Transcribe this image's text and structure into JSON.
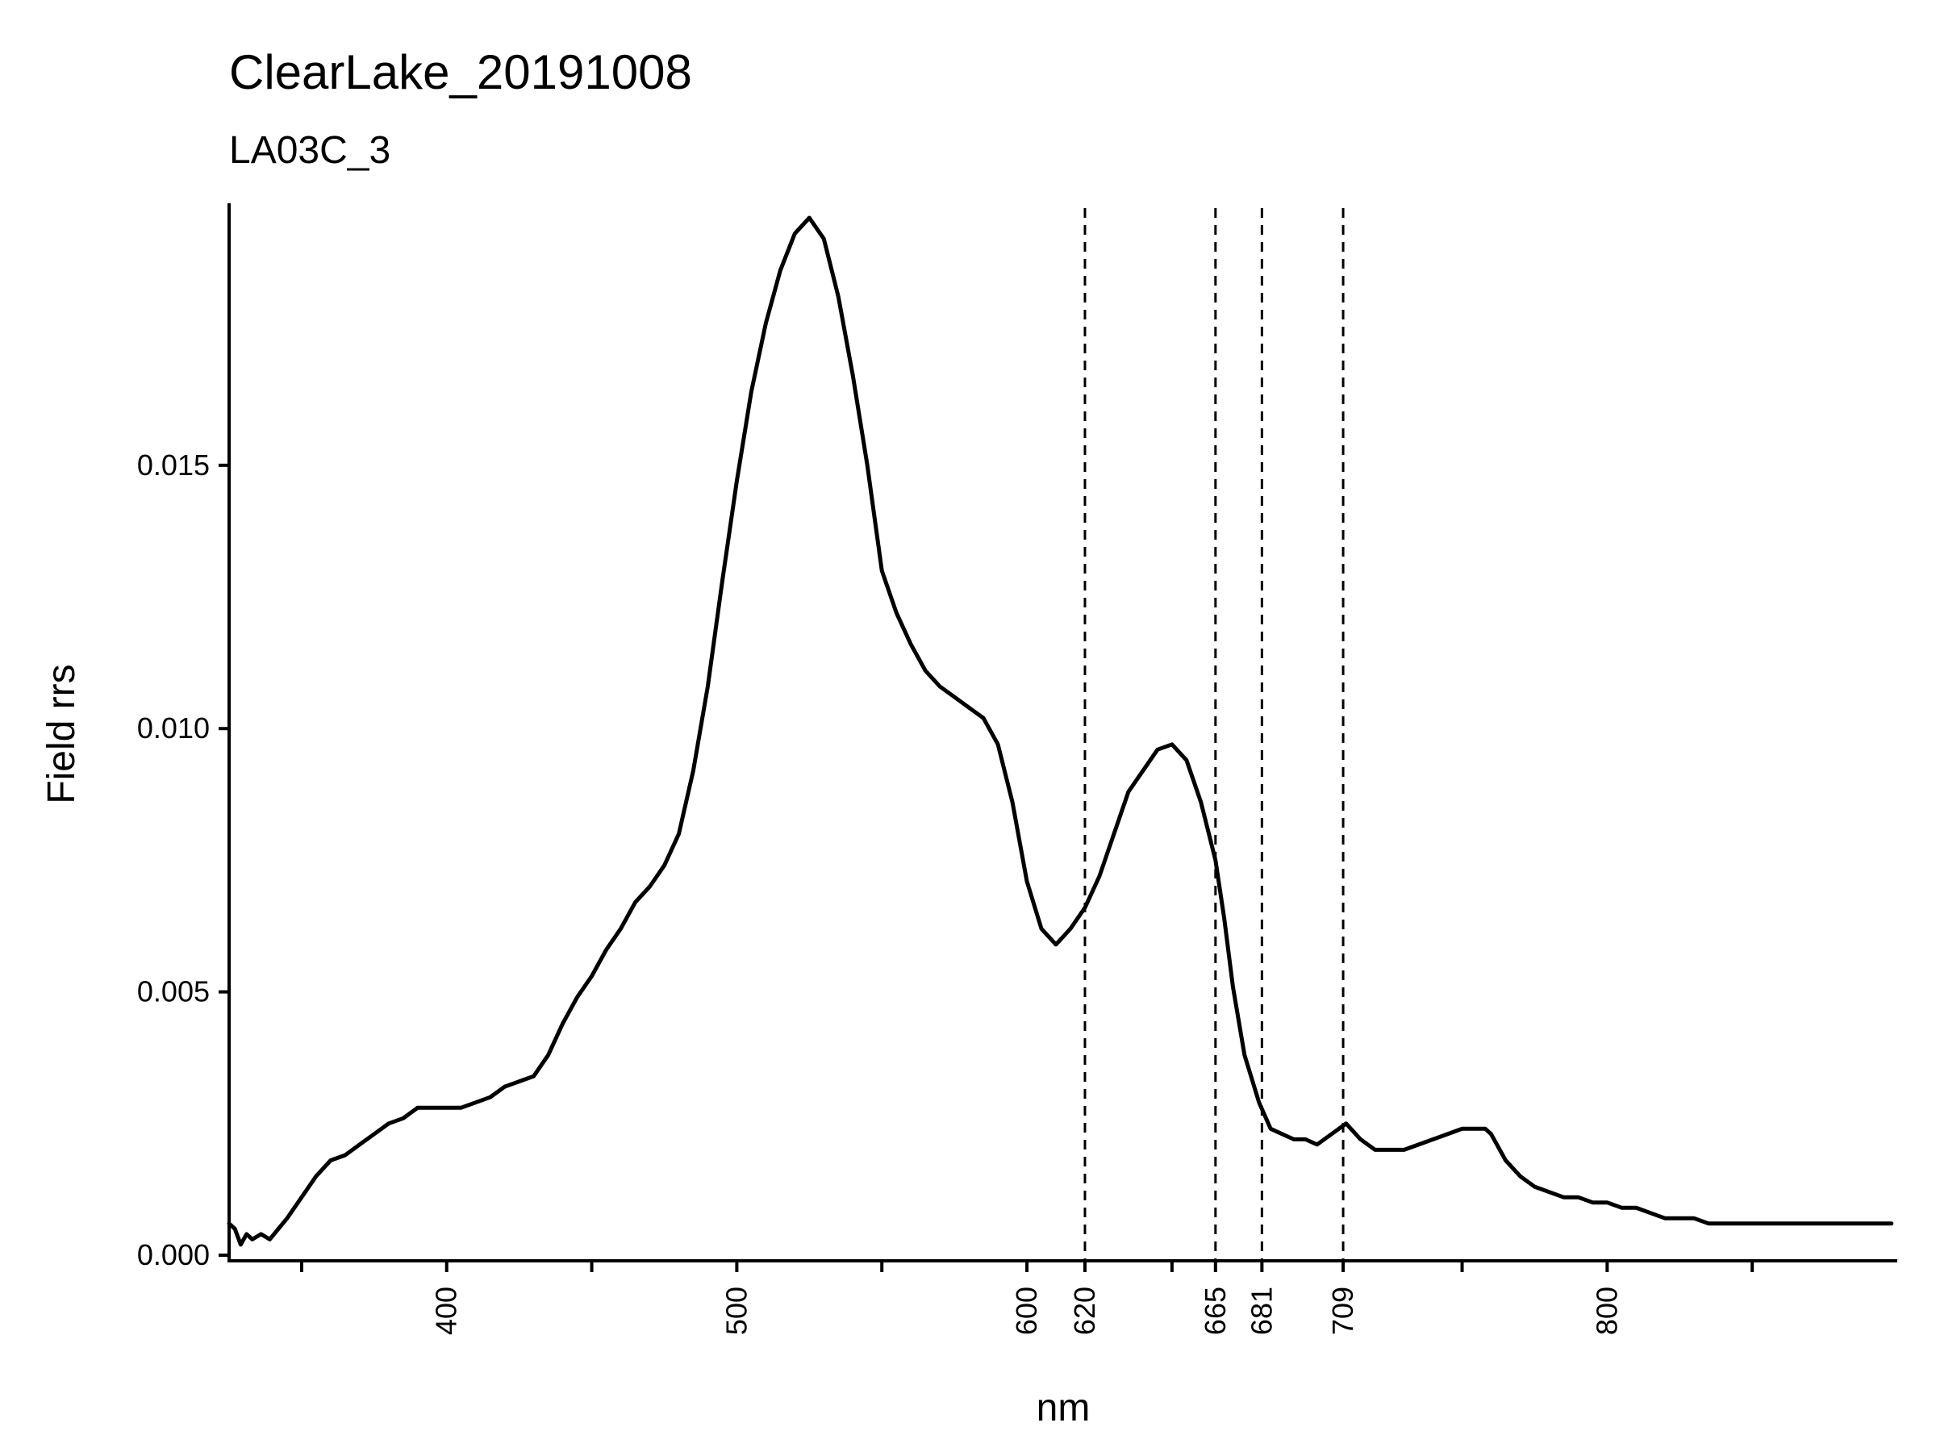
{
  "chart_data": {
    "type": "line",
    "title": "ClearLake_20191008",
    "subtitle": "LA03C_3",
    "xlabel": "nm",
    "ylabel": "Field rrs",
    "xlim": [
      325,
      900
    ],
    "ylim": [
      0,
      0.0197
    ],
    "x_ticks_major": [
      400,
      500,
      600,
      620,
      665,
      681,
      709,
      800
    ],
    "x_ticks_minor": [
      350,
      450,
      550,
      650,
      750,
      850
    ],
    "y_ticks": [
      0.0,
      0.005,
      0.01,
      0.015
    ],
    "y_tick_labels": [
      "0.000",
      "0.005",
      "0.010",
      "0.015"
    ],
    "vlines": [
      620,
      665,
      681,
      709
    ],
    "grid": false,
    "legend": "none",
    "series": [
      {
        "x": [
          325,
          327,
          329,
          331,
          333,
          336,
          339,
          342,
          345,
          350,
          355,
          360,
          365,
          370,
          375,
          380,
          385,
          390,
          395,
          400,
          405,
          410,
          415,
          420,
          425,
          430,
          435,
          440,
          445,
          450,
          455,
          460,
          465,
          470,
          475,
          480,
          485,
          490,
          495,
          500,
          505,
          510,
          515,
          520,
          525,
          530,
          535,
          540,
          545,
          550,
          555,
          560,
          565,
          570,
          575,
          580,
          585,
          590,
          595,
          600,
          605,
          610,
          615,
          620,
          625,
          630,
          635,
          640,
          645,
          650,
          655,
          660,
          665,
          668,
          671,
          675,
          680,
          684,
          688,
          692,
          696,
          700,
          705,
          710,
          715,
          720,
          725,
          730,
          735,
          740,
          745,
          750,
          755,
          758,
          760,
          762,
          765,
          770,
          775,
          780,
          785,
          790,
          795,
          800,
          805,
          810,
          815,
          820,
          825,
          830,
          835,
          840,
          845,
          850,
          855,
          860,
          865,
          870,
          875,
          880,
          885,
          890,
          895,
          898
        ],
        "y": [
          0.0006,
          0.0005,
          0.0002,
          0.0004,
          0.0003,
          0.0004,
          0.0003,
          0.0005,
          0.0007,
          0.0011,
          0.0015,
          0.0018,
          0.0019,
          0.0021,
          0.0023,
          0.0025,
          0.0026,
          0.0028,
          0.0028,
          0.0028,
          0.0028,
          0.0029,
          0.003,
          0.0032,
          0.0033,
          0.0034,
          0.0038,
          0.0044,
          0.0049,
          0.0053,
          0.0058,
          0.0062,
          0.0067,
          0.007,
          0.0074,
          0.008,
          0.0092,
          0.0108,
          0.0128,
          0.0147,
          0.0164,
          0.0177,
          0.0187,
          0.0194,
          0.0197,
          0.0193,
          0.0182,
          0.0167,
          0.015,
          0.013,
          0.0122,
          0.0116,
          0.0111,
          0.0108,
          0.0106,
          0.0104,
          0.0102,
          0.0097,
          0.0086,
          0.0071,
          0.0062,
          0.0059,
          0.0062,
          0.0066,
          0.0072,
          0.008,
          0.0088,
          0.0092,
          0.0096,
          0.0097,
          0.0094,
          0.0086,
          0.0075,
          0.0064,
          0.0051,
          0.0038,
          0.0029,
          0.0024,
          0.0023,
          0.0022,
          0.0022,
          0.0021,
          0.0023,
          0.0025,
          0.0022,
          0.002,
          0.002,
          0.002,
          0.0021,
          0.0022,
          0.0023,
          0.0024,
          0.0024,
          0.0024,
          0.0023,
          0.0021,
          0.0018,
          0.0015,
          0.0013,
          0.0012,
          0.0011,
          0.0011,
          0.001,
          0.001,
          0.0009,
          0.0009,
          0.0008,
          0.0007,
          0.0007,
          0.0007,
          0.0006,
          0.0006,
          0.0006,
          0.0006,
          0.0006,
          0.0006,
          0.0006,
          0.0006,
          0.0006,
          0.0006,
          0.0006,
          0.0006,
          0.0006,
          0.0006
        ]
      }
    ]
  }
}
